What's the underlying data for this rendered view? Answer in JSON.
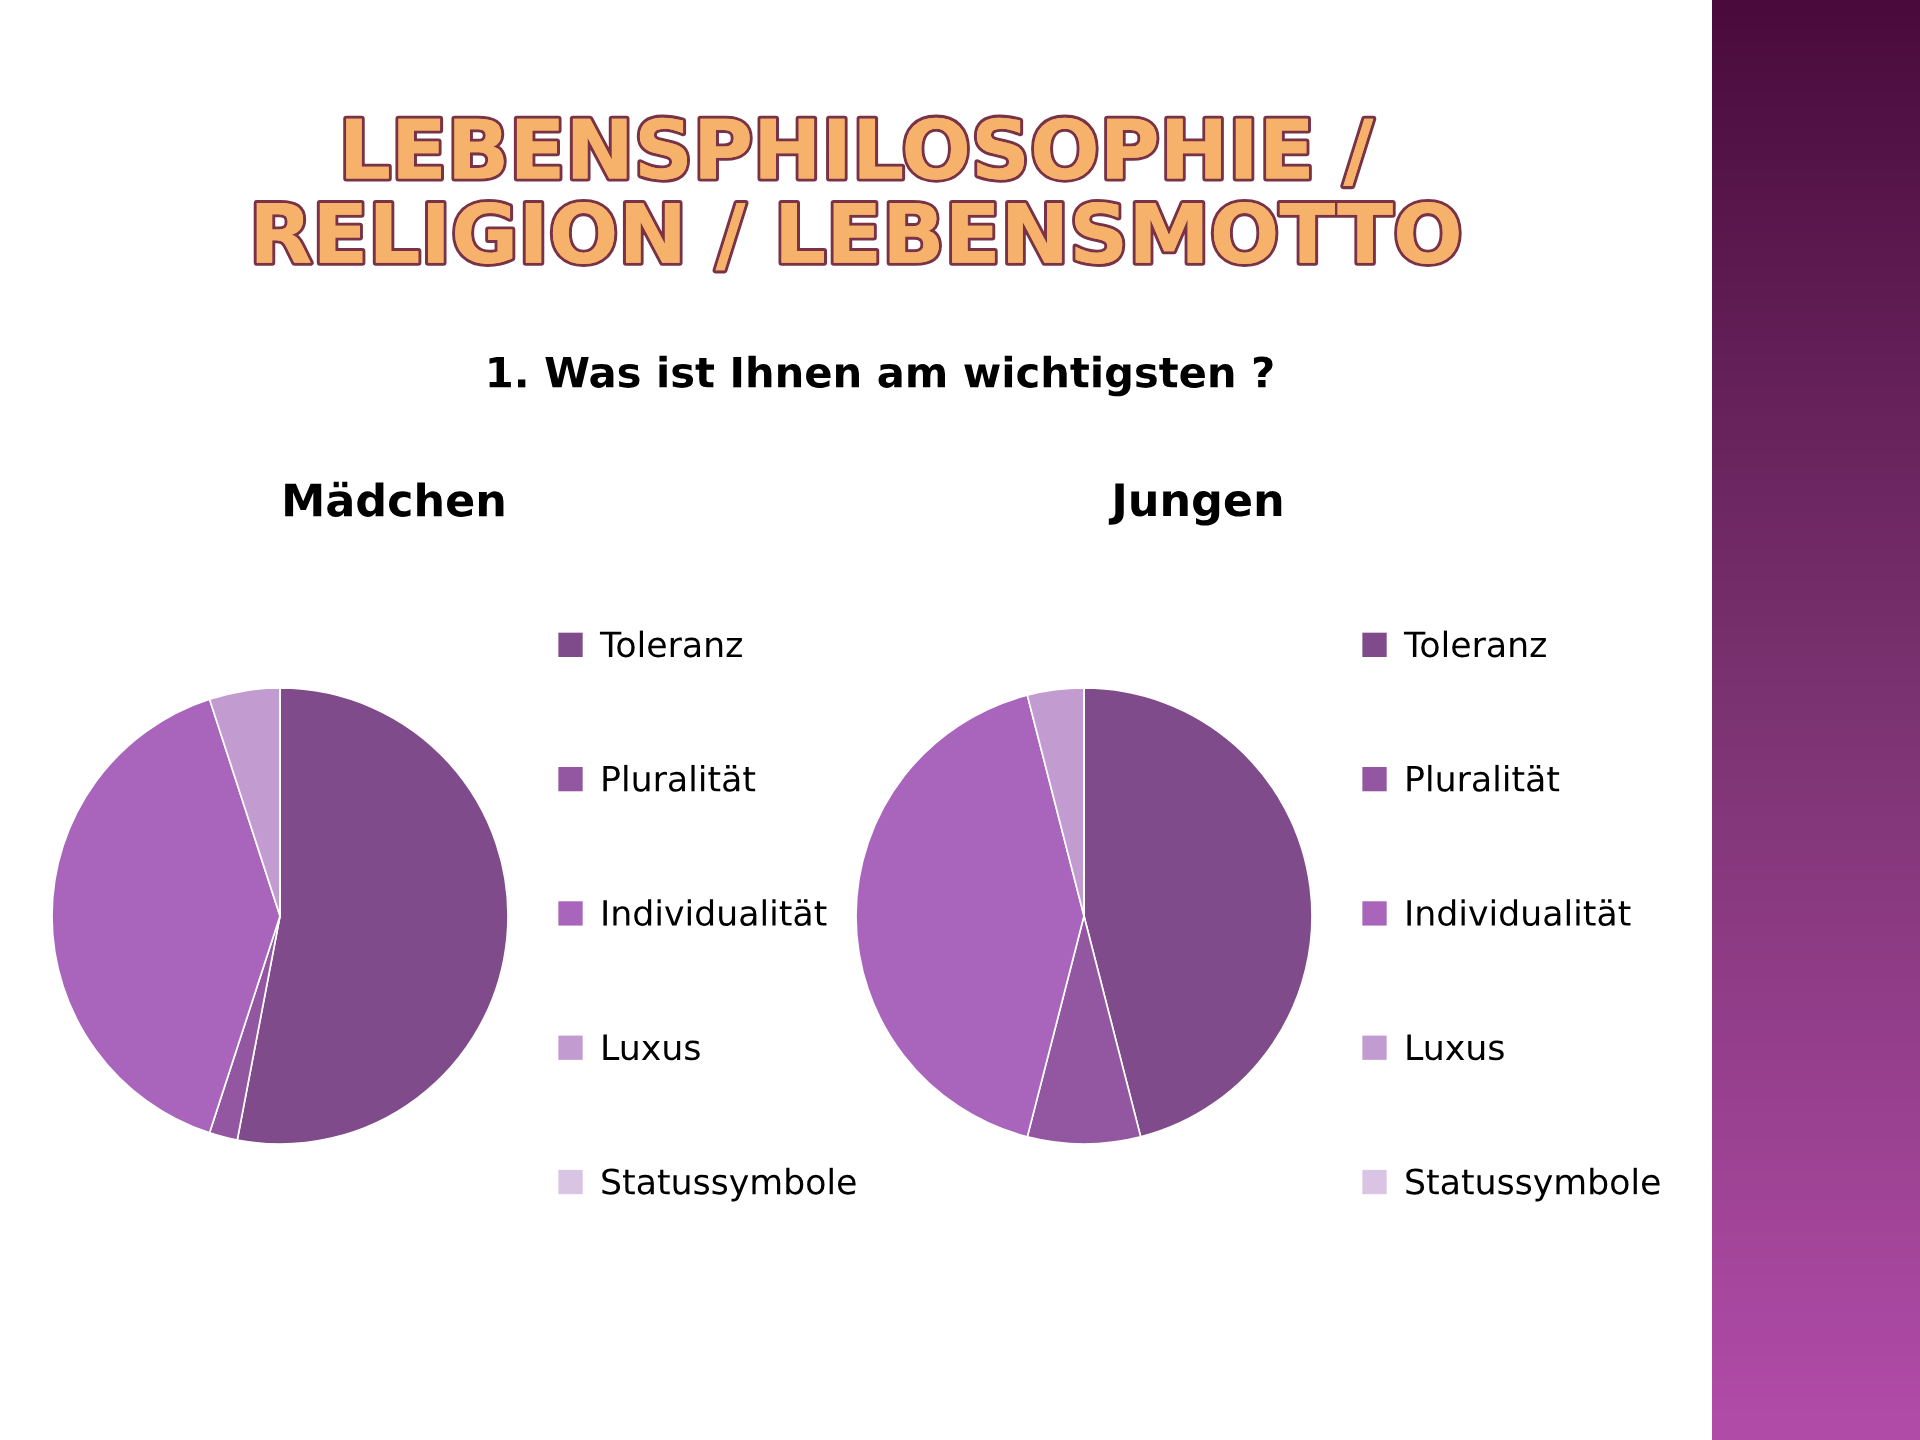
{
  "chart_data": [
    {
      "type": "pie",
      "title": "Mädchen",
      "annotations": [
        "LEBENSPHILOSOPHIE / RELIGION / LEBENSMOTTO",
        "1. Was ist Ihnen am wichtigsten ?"
      ],
      "categories": [
        "Toleranz",
        "Pluralität",
        "Individualität",
        "Luxus",
        "Statussymbole"
      ],
      "values": [
        53,
        2,
        40,
        5,
        0
      ],
      "colors": [
        "#7f4b8b",
        "#9357a2",
        "#a964bb",
        "#c29bd1",
        "#dac4e3"
      ],
      "legend": "right"
    },
    {
      "type": "pie",
      "title": "Jungen",
      "categories": [
        "Toleranz",
        "Pluralität",
        "Individualität",
        "Luxus",
        "Statussymbole"
      ],
      "values": [
        46,
        8,
        42,
        4,
        0
      ],
      "colors": [
        "#7f4b8b",
        "#9357a2",
        "#a964bb",
        "#c29bd1",
        "#dac4e3"
      ],
      "legend": "right"
    }
  ]
}
